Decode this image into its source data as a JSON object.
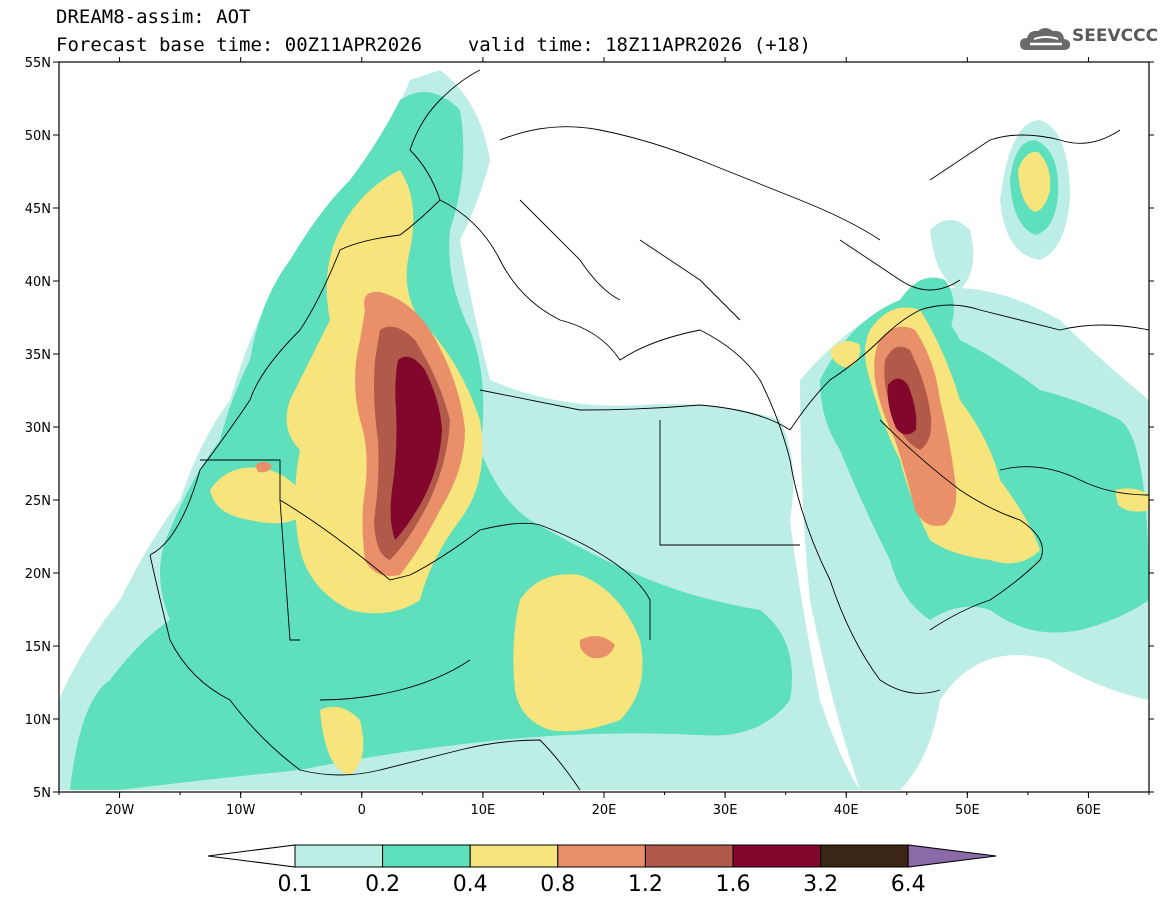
{
  "header": {
    "line1": "DREAM8-assim: AOT",
    "line2_base": "Forecast base time: 00Z11APR2026",
    "line2_valid": "valid time: 18Z11APR2026 (+18)"
  },
  "logo": {
    "text": "SEEVCCC",
    "icon": "cloud-icon"
  },
  "map": {
    "lon_range": [
      -25,
      65
    ],
    "lat_range": [
      5,
      55
    ],
    "lon_ticks": [
      "20W",
      "10W",
      "0",
      "10E",
      "20E",
      "30E",
      "40E",
      "50E",
      "60E"
    ],
    "lat_ticks": [
      "55N",
      "50N",
      "45N",
      "40N",
      "35N",
      "30N",
      "25N",
      "20N",
      "15N",
      "10N",
      "5N"
    ]
  },
  "colorbar": {
    "levels": [
      "0.1",
      "0.2",
      "0.4",
      "0.8",
      "1.2",
      "1.6",
      "3.2",
      "6.4"
    ],
    "colors": {
      "c01": "#bdeee6",
      "c02": "#5de0bb",
      "c04": "#f7e47c",
      "c08": "#e9906a",
      "c12": "#b25a4a",
      "c16": "#82072c",
      "c32": "#3b2514",
      "c64": "#8a6ba8"
    }
  }
}
